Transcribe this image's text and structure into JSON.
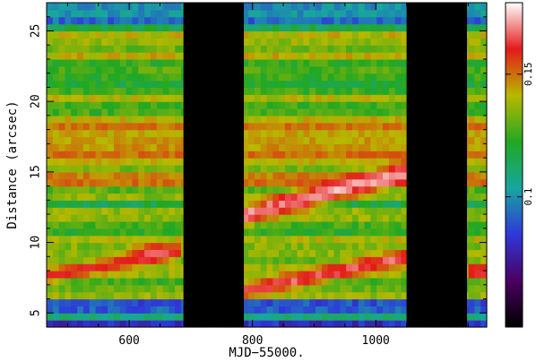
{
  "chart_data": {
    "type": "heatmap",
    "xlabel": "MJD−55000.",
    "ylabel": "Distance (arcsec)",
    "xlim": [
      466,
      1180
    ],
    "ylim": [
      4,
      27
    ],
    "x_ticks": [
      {
        "value": 600,
        "label": "600"
      },
      {
        "value": 800,
        "label": "800"
      },
      {
        "value": 1000,
        "label": "1000"
      }
    ],
    "y_ticks": [
      {
        "value": 5,
        "label": "5"
      },
      {
        "value": 10,
        "label": "10"
      },
      {
        "value": 15,
        "label": "15"
      },
      {
        "value": 20,
        "label": "20"
      },
      {
        "value": 25,
        "label": "25"
      }
    ],
    "colorbar": {
      "range": [
        0.065,
        0.19
      ],
      "scale": "log",
      "ticks": [
        {
          "value": 0.1,
          "label": "0.1"
        },
        {
          "value": 0.15,
          "label": "0.15"
        }
      ],
      "colors": [
        "#000000",
        "#4a0060",
        "#2f38d8",
        "#17a6a0",
        "#22a822",
        "#b8b800",
        "#e41a1a",
        "#ffffff"
      ]
    },
    "gaps_mjd": [
      [
        688,
        786
      ],
      [
        1050,
        1148
      ]
    ],
    "base_value": 0.128,
    "features": [
      {
        "kind": "ridge",
        "x_range": [
          786,
          1050
        ],
        "y_start": 12.0,
        "y_end": 15.0,
        "peak": 0.178,
        "width": 0.7
      },
      {
        "kind": "ridge",
        "x_range": [
          786,
          1050
        ],
        "y_start": 6.6,
        "y_end": 9.0,
        "peak": 0.17,
        "width": 0.55
      },
      {
        "kind": "ridge",
        "x_range": [
          466,
          688
        ],
        "y_start": 7.6,
        "y_end": 9.5,
        "peak": 0.165,
        "width": 0.5
      },
      {
        "kind": "ridge",
        "x_range": [
          1148,
          1180
        ],
        "y_start": 8.0,
        "y_end": 8.0,
        "peak": 0.17,
        "width": 0.5
      },
      {
        "kind": "blob",
        "x": 640,
        "y": 9.3,
        "peak": 0.172,
        "width": 0.6
      },
      {
        "kind": "band",
        "y_range": [
          4,
          6.2
        ],
        "value": 0.098
      },
      {
        "kind": "band",
        "y_range": [
          25.5,
          27
        ],
        "value": 0.1
      },
      {
        "kind": "band",
        "y_range": [
          14,
          18.5
        ],
        "value": 0.14
      }
    ]
  }
}
